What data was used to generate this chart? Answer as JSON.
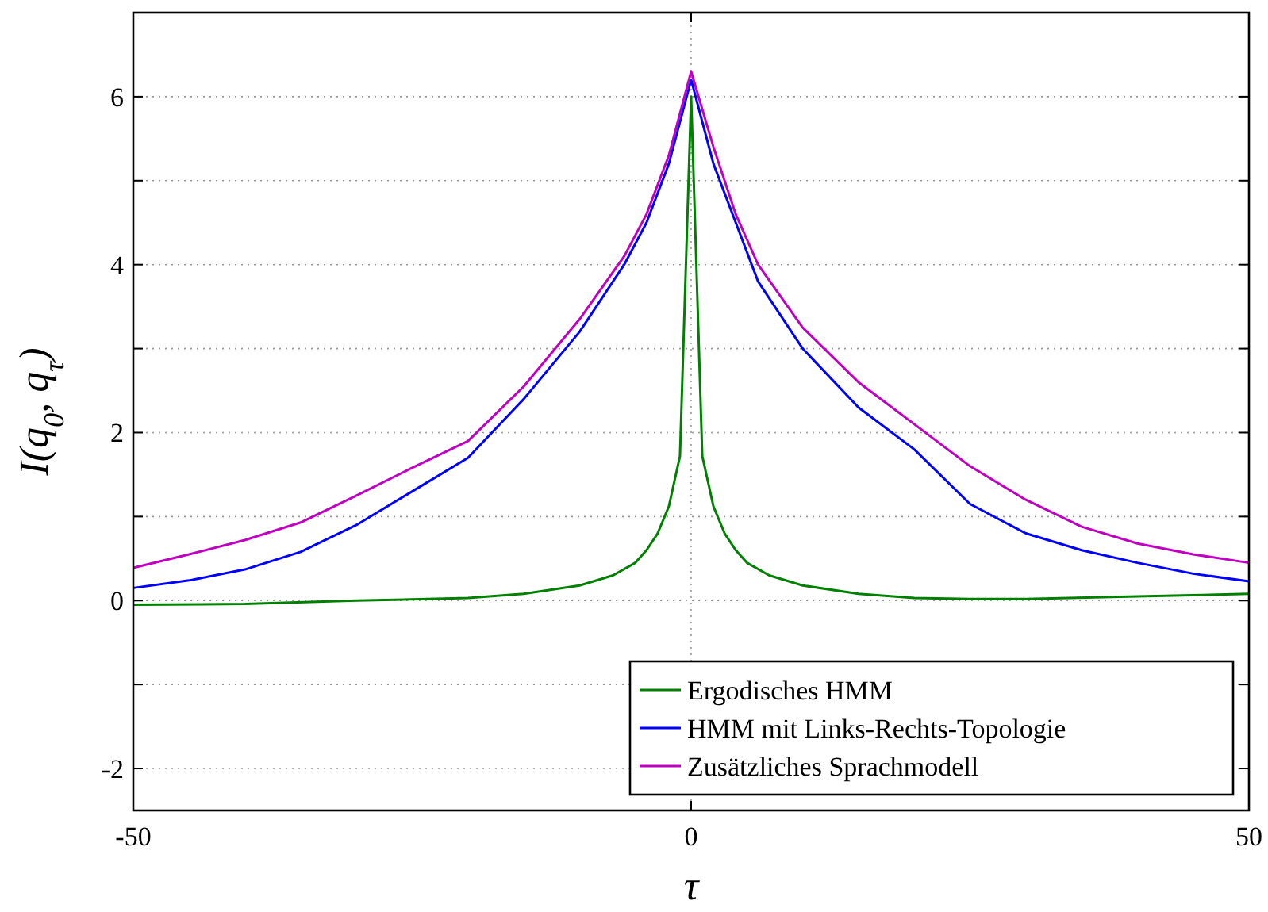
{
  "chart_data": {
    "type": "line",
    "xlabel": "τ",
    "ylabel": "I(q$_{0}$, q$_{τ}$)",
    "xlim": [
      -50,
      50
    ],
    "xticks": [
      -50,
      0,
      50
    ],
    "ylim": [
      -2.5,
      7
    ],
    "yticks": [
      {
        "value": -2,
        "label": "-2"
      },
      {
        "value": -1,
        "label": null
      },
      {
        "value": 0,
        "label": "0"
      },
      {
        "value": 1,
        "label": null
      },
      {
        "value": 2,
        "label": "2"
      },
      {
        "value": 3,
        "label": null
      },
      {
        "value": 4,
        "label": "4"
      },
      {
        "value": 5,
        "label": null
      },
      {
        "value": 6,
        "label": "6"
      }
    ],
    "grid": true,
    "legend": "bottom right",
    "line_style": "solid",
    "marker": "none",
    "series": [
      {
        "name": "Ergodisches HMM",
        "color": "#008000",
        "x": [
          -50,
          -40,
          -30,
          -20,
          -15,
          -10,
          -7,
          -5,
          -4,
          -3,
          -2,
          -1,
          0,
          1,
          2,
          3,
          4,
          5,
          7,
          10,
          15,
          20,
          25,
          30,
          40,
          50
        ],
        "values": [
          -0.05,
          -0.04,
          0.0,
          0.03,
          0.08,
          0.18,
          0.3,
          0.45,
          0.6,
          0.8,
          1.12,
          1.72,
          6.0,
          1.72,
          1.12,
          0.8,
          0.6,
          0.45,
          0.3,
          0.18,
          0.08,
          0.03,
          0.02,
          0.02,
          0.05,
          0.08
        ]
      },
      {
        "name": "HMM mit Links-Rechts-Topologie",
        "color": "#0000ff",
        "x": [
          -50,
          -45,
          -40,
          -35,
          -30,
          -25,
          -20,
          -15,
          -10,
          -6,
          -4,
          -2,
          0,
          2,
          4,
          6,
          10,
          15,
          20,
          25,
          30,
          35,
          40,
          45,
          50
        ],
        "values": [
          0.15,
          0.24,
          0.37,
          0.58,
          0.9,
          1.3,
          1.7,
          2.4,
          3.2,
          4.0,
          4.5,
          5.2,
          6.2,
          5.2,
          4.5,
          3.8,
          3.0,
          2.3,
          1.8,
          1.15,
          0.8,
          0.6,
          0.45,
          0.32,
          0.23
        ]
      },
      {
        "name": "Zusätzliches Sprachmodell",
        "color": "#c000c0",
        "x": [
          -50,
          -45,
          -40,
          -35,
          -30,
          -25,
          -20,
          -15,
          -10,
          -6,
          -4,
          -2,
          0,
          2,
          4,
          6,
          10,
          15,
          20,
          25,
          30,
          35,
          40,
          45,
          50
        ],
        "values": [
          0.39,
          0.55,
          0.72,
          0.93,
          1.25,
          1.58,
          1.9,
          2.55,
          3.35,
          4.1,
          4.6,
          5.3,
          6.3,
          5.4,
          4.6,
          4.0,
          3.25,
          2.6,
          2.1,
          1.6,
          1.2,
          0.88,
          0.68,
          0.55,
          0.45
        ]
      }
    ]
  }
}
